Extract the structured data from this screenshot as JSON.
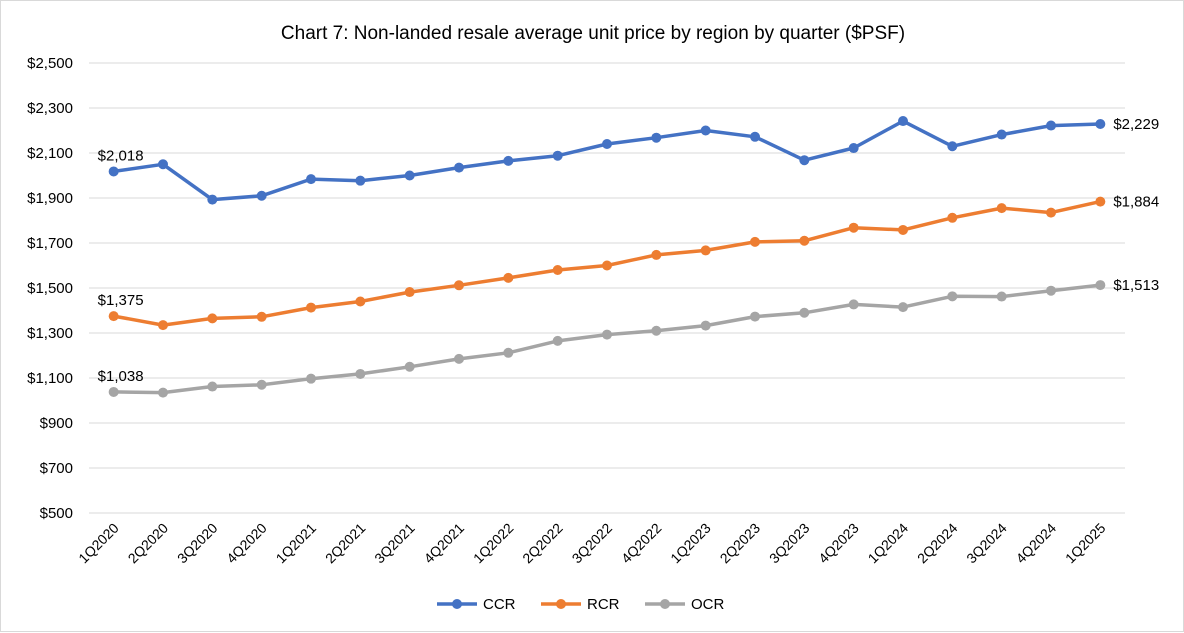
{
  "chart_data": {
    "type": "line",
    "title": "Chart 7: Non-landed resale average unit price by region by quarter ($PSF)",
    "xlabel": "",
    "ylabel": "",
    "ylim": [
      500,
      2500
    ],
    "y_ticks": [
      "$500",
      "$700",
      "$900",
      "$1,100",
      "$1,300",
      "$1,500",
      "$1,700",
      "$1,900",
      "$2,100",
      "$2,300",
      "$2,500"
    ],
    "grid": "horizontal",
    "legend": "bottom-center",
    "categories": [
      "1Q2020",
      "2Q2020",
      "3Q2020",
      "4Q2020",
      "1Q2021",
      "2Q2021",
      "3Q2021",
      "4Q2021",
      "1Q2022",
      "2Q2022",
      "3Q2022",
      "4Q2022",
      "1Q2023",
      "2Q2023",
      "3Q2023",
      "4Q2023",
      "1Q2024",
      "2Q2024",
      "3Q2024",
      "4Q2024",
      "1Q2025"
    ],
    "series": [
      {
        "name": "CCR",
        "color": "#4472c4",
        "values": [
          2018,
          2050,
          1893,
          1910,
          1984,
          1977,
          2000,
          2035,
          2065,
          2088,
          2140,
          2168,
          2200,
          2172,
          2068,
          2122,
          2242,
          2130,
          2182,
          2222,
          2229
        ],
        "start_label": "$2,018",
        "end_label": "$2,229"
      },
      {
        "name": "RCR",
        "color": "#ed7d31",
        "values": [
          1375,
          1335,
          1365,
          1372,
          1413,
          1440,
          1482,
          1512,
          1545,
          1580,
          1600,
          1647,
          1667,
          1705,
          1710,
          1768,
          1758,
          1812,
          1855,
          1835,
          1884
        ],
        "start_label": "$1,375",
        "end_label": "$1,884"
      },
      {
        "name": "OCR",
        "color": "#a5a5a5",
        "values": [
          1038,
          1035,
          1062,
          1070,
          1097,
          1118,
          1150,
          1185,
          1212,
          1265,
          1293,
          1310,
          1333,
          1373,
          1390,
          1427,
          1415,
          1463,
          1462,
          1488,
          1513
        ],
        "start_label": "$1,038",
        "end_label": "$1,513"
      }
    ]
  }
}
